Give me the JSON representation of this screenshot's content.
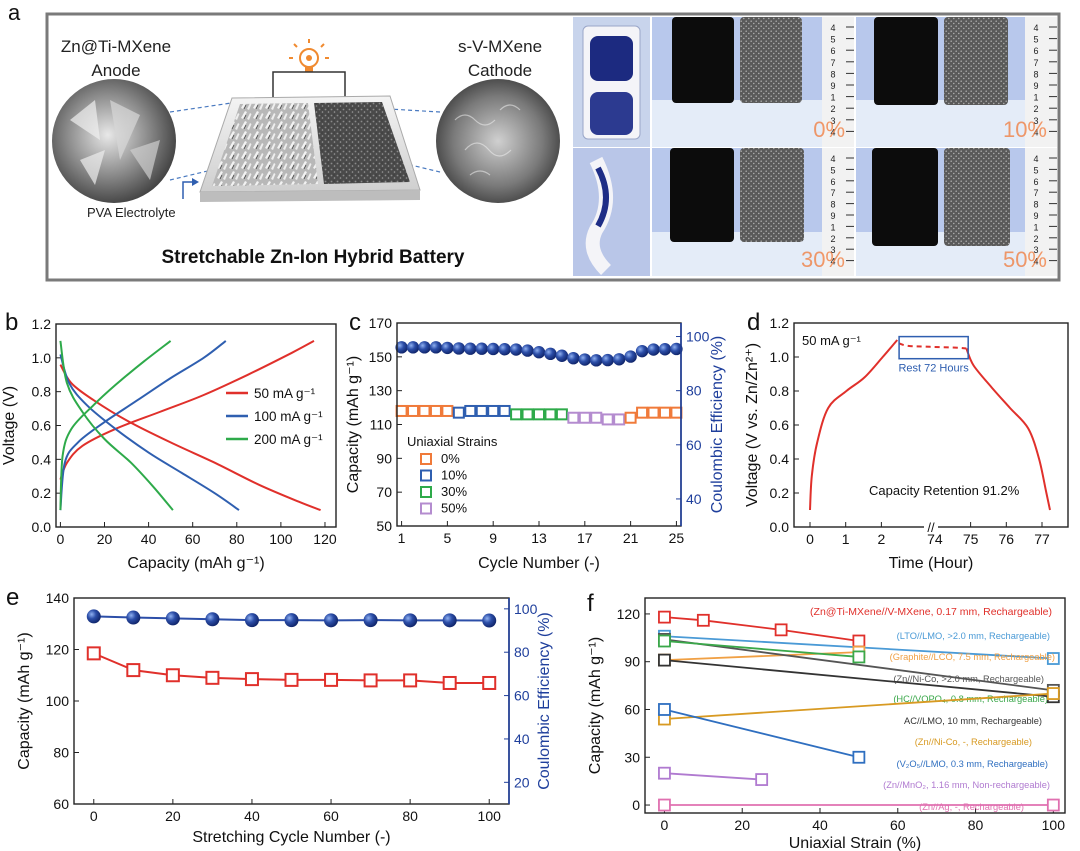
{
  "panels": {
    "a": {
      "letter": "a",
      "anode_line1": "Zn@Ti-MXene",
      "anode_line2": "Anode",
      "cathode_line1": "s-V-MXene",
      "cathode_line2": "Cathode",
      "electrolyte": "PVA Electrolyte",
      "title": "Stretchable Zn-Ion Hybrid Battery",
      "photo_labels": [
        "0%",
        "10%",
        "30%",
        "50%"
      ],
      "ruler_digits": [
        "4",
        "5",
        "6",
        "7",
        "8",
        "9",
        "1",
        "2",
        "3",
        "4"
      ]
    },
    "b": {
      "letter": "b"
    },
    "c": {
      "letter": "c"
    },
    "d": {
      "letter": "d"
    },
    "e": {
      "letter": "e"
    },
    "f": {
      "letter": "f"
    }
  },
  "colors": {
    "red": "#e0302b",
    "blue": "#2f5fb0",
    "green": "#2eaa4a",
    "orange": "#f07a3a",
    "purple": "#b48ccf",
    "navy_text": "#1f3f9c",
    "ball": "#2c4ea8"
  },
  "chart_data": [
    {
      "panel": "b",
      "type": "line",
      "xlabel": "Capacity (mAh g⁻¹)",
      "ylabel": "Voltage (V)",
      "xlim": [
        -2,
        125
      ],
      "ylim": [
        0,
        1.2
      ],
      "xticks": [
        0,
        20,
        40,
        60,
        80,
        100,
        120
      ],
      "yticks": [
        0,
        0.2,
        0.4,
        0.6,
        0.8,
        1.0,
        1.2
      ],
      "xtick_labels": [
        "0",
        "20",
        "40",
        "60",
        "80",
        "100",
        "120"
      ],
      "ytick_labels": [
        "0.0",
        "0.2",
        "0.4",
        "0.6",
        "0.8",
        "1.0",
        "1.2"
      ],
      "series": [
        {
          "name": "50 mA g⁻¹",
          "color": "#e0302b",
          "charge": [
            [
              0,
              0.28
            ],
            [
              3,
              0.38
            ],
            [
              10,
              0.48
            ],
            [
              25,
              0.58
            ],
            [
              45,
              0.68
            ],
            [
              65,
              0.78
            ],
            [
              85,
              0.9
            ],
            [
              105,
              1.03
            ],
            [
              115,
              1.1
            ]
          ],
          "discharge": [
            [
              0,
              0.96
            ],
            [
              5,
              0.85
            ],
            [
              15,
              0.75
            ],
            [
              30,
              0.63
            ],
            [
              50,
              0.5
            ],
            [
              70,
              0.38
            ],
            [
              90,
              0.25
            ],
            [
              108,
              0.15
            ],
            [
              118,
              0.1
            ]
          ]
        },
        {
          "name": "100 mA g⁻¹",
          "color": "#2f5fb0",
          "charge": [
            [
              0,
              0.1
            ],
            [
              2,
              0.38
            ],
            [
              8,
              0.5
            ],
            [
              20,
              0.62
            ],
            [
              35,
              0.75
            ],
            [
              50,
              0.88
            ],
            [
              65,
              1.0
            ],
            [
              75,
              1.1
            ]
          ],
          "discharge": [
            [
              0,
              1.02
            ],
            [
              4,
              0.85
            ],
            [
              12,
              0.72
            ],
            [
              25,
              0.58
            ],
            [
              40,
              0.44
            ],
            [
              55,
              0.32
            ],
            [
              70,
              0.2
            ],
            [
              81,
              0.1
            ]
          ]
        },
        {
          "name": "200 mA g⁻¹",
          "color": "#2eaa4a",
          "charge": [
            [
              0,
              0.1
            ],
            [
              1,
              0.42
            ],
            [
              5,
              0.58
            ],
            [
              15,
              0.72
            ],
            [
              25,
              0.84
            ],
            [
              38,
              0.98
            ],
            [
              50,
              1.1
            ]
          ],
          "discharge": [
            [
              0,
              1.1
            ],
            [
              3,
              0.85
            ],
            [
              10,
              0.68
            ],
            [
              20,
              0.52
            ],
            [
              32,
              0.38
            ],
            [
              42,
              0.24
            ],
            [
              51,
              0.1
            ]
          ]
        }
      ],
      "legend_position": "right-center"
    },
    {
      "panel": "c",
      "type": "scatter",
      "xlabel": "Cycle Number (-)",
      "ylabel": "Capacity (mAh g⁻¹)",
      "y2label": "Coulombic Efficiency (%)",
      "xlim": [
        0.6,
        25.4
      ],
      "ylim": [
        50,
        170
      ],
      "y2lim": [
        30,
        105
      ],
      "xticks": [
        1,
        5,
        9,
        13,
        17,
        21,
        25
      ],
      "yticks": [
        50,
        70,
        90,
        110,
        130,
        150,
        170
      ],
      "y2ticks": [
        40,
        60,
        80,
        100
      ],
      "legend_title": "Uniaxial Strains",
      "legend": [
        {
          "label": "0%",
          "color": "#f07a3a"
        },
        {
          "label": "10%",
          "color": "#2f5fb0"
        },
        {
          "label": "30%",
          "color": "#2eaa4a"
        },
        {
          "label": "50%",
          "color": "#b48ccf"
        }
      ],
      "capacity": [
        118,
        118,
        118,
        118,
        118,
        117,
        118,
        118,
        118,
        118,
        116,
        116,
        116,
        116,
        116,
        114,
        114,
        114,
        113,
        113,
        114,
        117,
        117,
        117,
        117
      ],
      "capacity_strain_index": [
        0,
        0,
        0,
        0,
        0,
        1,
        1,
        1,
        1,
        1,
        2,
        2,
        2,
        2,
        2,
        3,
        3,
        3,
        3,
        3,
        0,
        0,
        0,
        0,
        0
      ],
      "efficiency": [
        96,
        96,
        96,
        96,
        95.8,
        95.6,
        95.5,
        95.5,
        95.4,
        95.3,
        95.2,
        94.8,
        94.2,
        93.6,
        92.9,
        92,
        91.5,
        91.2,
        91.3,
        91.6,
        92.6,
        94.6,
        95.2,
        95.3,
        95.4
      ]
    },
    {
      "panel": "d",
      "type": "line",
      "xlabel": "Time (Hour)",
      "ylabel": "Voltage (V vs. Zn/Zn²⁺)",
      "ylim": [
        0,
        1.2
      ],
      "yticks": [
        0,
        0.2,
        0.4,
        0.6,
        0.8,
        1.0,
        1.2
      ],
      "ytick_labels": [
        "0.0",
        "0.2",
        "0.4",
        "0.6",
        "0.8",
        "1.0",
        "1.2"
      ],
      "xtick_labels": [
        "0",
        "1",
        "2",
        "74",
        "75",
        "76",
        "77"
      ],
      "axis_break_label": "//",
      "current_label": "50 mA g⁻¹",
      "rest_label": "Rest 72 Hours",
      "retention_label": "Capacity Retention 91.2%",
      "charge_curve": [
        [
          0,
          0.1
        ],
        [
          0.05,
          0.3
        ],
        [
          0.2,
          0.5
        ],
        [
          0.5,
          0.7
        ],
        [
          1.0,
          0.8
        ],
        [
          1.5,
          0.88
        ],
        [
          2.0,
          1.0
        ],
        [
          2.4,
          1.1
        ]
      ],
      "rest_curve": [
        [
          2.45,
          1.08
        ],
        [
          2.7,
          1.065
        ],
        [
          3.3,
          1.06
        ],
        [
          4.0,
          1.055
        ],
        [
          4.3,
          1.05
        ]
      ],
      "discharge_curve": [
        [
          4.3,
          1.05
        ],
        [
          4.5,
          0.95
        ],
        [
          5.0,
          0.82
        ],
        [
          5.5,
          0.7
        ],
        [
          6.0,
          0.58
        ],
        [
          6.3,
          0.4
        ],
        [
          6.5,
          0.2
        ],
        [
          6.6,
          0.1
        ]
      ],
      "colors": {
        "curve": "#e0302b",
        "box": "#2f5fb0"
      }
    },
    {
      "panel": "e",
      "type": "scatter",
      "xlabel": "Stretching Cycle Number (-)",
      "ylabel": "Capacity (mAh g⁻¹)",
      "y2label": "Coulombic Efficiency (%)",
      "xlim": [
        -5,
        105
      ],
      "ylim": [
        60,
        140
      ],
      "y2lim": [
        10,
        105
      ],
      "xticks": [
        0,
        20,
        40,
        60,
        80,
        100
      ],
      "yticks": [
        60,
        80,
        100,
        120,
        140
      ],
      "y2ticks": [
        20,
        40,
        60,
        80,
        100
      ],
      "x": [
        0,
        10,
        20,
        30,
        40,
        50,
        60,
        70,
        80,
        90,
        100
      ],
      "capacity": [
        118.5,
        112,
        110,
        109,
        108.5,
        108.2,
        108.2,
        108,
        108,
        107,
        107
      ],
      "efficiency": [
        96.5,
        96,
        95.6,
        95.2,
        94.8,
        94.8,
        94.7,
        94.8,
        94.7,
        94.7,
        94.6
      ]
    },
    {
      "panel": "f",
      "type": "line",
      "xlabel": "Uniaxial Strain (%)",
      "ylabel": "Capacity (mAh g⁻¹)",
      "xlim": [
        -5,
        103
      ],
      "ylim": [
        -5,
        130
      ],
      "xticks": [
        0,
        20,
        40,
        60,
        80,
        100
      ],
      "yticks": [
        0,
        30,
        60,
        90,
        120
      ],
      "series": [
        {
          "label": "(Zn@Ti-MXene//V-MXene, 0.17 mm, Rechargeable)",
          "color": "#e0302b",
          "points": [
            [
              0,
              118
            ],
            [
              10,
              116
            ],
            [
              30,
              110
            ],
            [
              50,
              103
            ]
          ]
        },
        {
          "label": "(LTO//LMO, >2.0 mm, Rechargeable)",
          "color": "#4a9ad6",
          "points": [
            [
              0,
              106
            ],
            [
              100,
              92
            ]
          ]
        },
        {
          "label": "(Graphite//LCO, 7.5 mm, Rechargeable)",
          "color": "#f0a044",
          "points": [
            [
              0,
              91
            ],
            [
              50,
              96
            ]
          ]
        },
        {
          "label": "(Zn//Ni-Co, >2.0 mm, Rechargeable)",
          "color": "#555555",
          "points": [
            [
              0,
              104
            ],
            [
              100,
              72
            ]
          ]
        },
        {
          "label": "(HC//VOPO₄, 0.8 mm, Rechargeable)",
          "color": "#3aa84a",
          "points": [
            [
              0,
              103
            ],
            [
              50,
              93
            ]
          ]
        },
        {
          "label": "AC//LMO, 10 mm, Rechargeable)",
          "color": "#333333",
          "points": [
            [
              0,
              91
            ],
            [
              100,
              68
            ]
          ]
        },
        {
          "label": "(Zn//Ni-Co, -, Rechargeable)",
          "color": "#d89a22",
          "points": [
            [
              0,
              54
            ],
            [
              100,
              70
            ]
          ]
        },
        {
          "label": "(V₂O₅//LMO, 0.3 mm, Rechargeable)",
          "color": "#2f6fc0",
          "points": [
            [
              0,
              60
            ],
            [
              50,
              30
            ]
          ]
        },
        {
          "label": "(Zn//MnO₂, 1.16 mm, Non-rechargeable)",
          "color": "#b07ad0",
          "points": [
            [
              0,
              20
            ],
            [
              25,
              16
            ]
          ]
        },
        {
          "label": "(Zn//Ag, -, Rechargeable)",
          "color": "#e070b0",
          "points": [
            [
              0,
              0
            ],
            [
              100,
              0
            ]
          ]
        }
      ]
    }
  ]
}
